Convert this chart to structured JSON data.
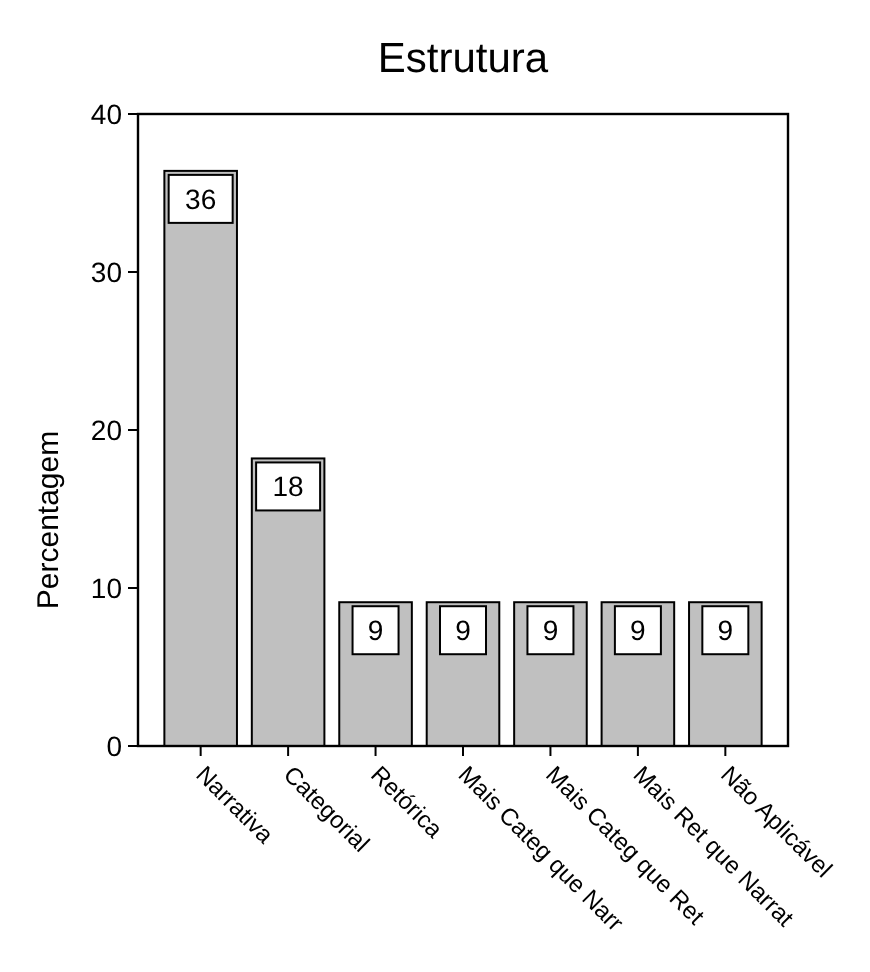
{
  "chart_data": {
    "type": "bar",
    "title": "Estrutura",
    "ylabel": "Percentagem",
    "categories": [
      "Narrativa",
      "Categorial",
      "Retórica",
      "Mais Categ que Narr",
      "Mais Categ que Ret",
      "Mais Ret que Narrat",
      "Não Aplicável"
    ],
    "values": [
      36.4,
      18.2,
      9.1,
      9.1,
      9.1,
      9.1,
      9.1
    ],
    "value_labels": [
      "36",
      "18",
      "9",
      "9",
      "9",
      "9",
      "9"
    ],
    "color": "#c0c0c0",
    "ylim": [
      0,
      40
    ],
    "yticks": [
      0,
      10,
      20,
      30,
      40
    ],
    "grid": false
  }
}
